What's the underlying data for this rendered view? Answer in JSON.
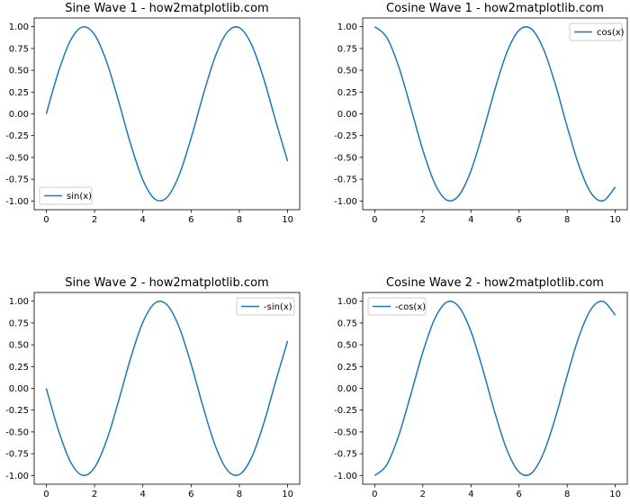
{
  "chart_data": [
    {
      "type": "line",
      "title": "Sine Wave 1 - how2matplotlib.com",
      "xlabel": "",
      "ylabel": "",
      "xlim": [
        -0.5,
        10.5
      ],
      "ylim": [
        -1.1,
        1.1
      ],
      "xticks": [
        0,
        2,
        4,
        6,
        8,
        10
      ],
      "xtick_labels": [
        "0",
        "2",
        "4",
        "6",
        "8",
        "10"
      ],
      "yticks": [
        -1,
        -0.75,
        -0.5,
        -0.25,
        0,
        0.25,
        0.5,
        0.75,
        1
      ],
      "ytick_labels": [
        "-1.00",
        "-0.75",
        "-0.50",
        "-0.25",
        "0.00",
        "0.25",
        "0.50",
        "0.75",
        "1.00"
      ],
      "grid": false,
      "legend_position": "lower-left",
      "series": [
        {
          "name": "sin(x)",
          "color": "#1f77b4",
          "x": [
            0,
            0.5,
            1,
            1.5,
            2,
            2.5,
            3,
            3.5,
            4,
            4.5,
            5,
            5.5,
            6,
            6.5,
            7,
            7.5,
            8,
            8.5,
            9,
            9.5,
            10
          ],
          "y": [
            0,
            0.479,
            0.841,
            0.997,
            0.909,
            0.598,
            0.141,
            -0.351,
            -0.757,
            -0.978,
            -0.959,
            -0.706,
            -0.279,
            0.215,
            0.657,
            0.938,
            0.989,
            0.798,
            0.412,
            -0.075,
            -0.544
          ]
        }
      ]
    },
    {
      "type": "line",
      "title": "Cosine Wave 1 - how2matplotlib.com",
      "xlabel": "",
      "ylabel": "",
      "xlim": [
        -0.5,
        10.5
      ],
      "ylim": [
        -1.1,
        1.1
      ],
      "xticks": [
        0,
        2,
        4,
        6,
        8,
        10
      ],
      "xtick_labels": [
        "0",
        "2",
        "4",
        "6",
        "8",
        "10"
      ],
      "yticks": [
        -1,
        -0.75,
        -0.5,
        -0.25,
        0,
        0.25,
        0.5,
        0.75,
        1
      ],
      "ytick_labels": [
        "-1.00",
        "-0.75",
        "-0.50",
        "-0.25",
        "0.00",
        "0.25",
        "0.50",
        "0.75",
        "1.00"
      ],
      "grid": false,
      "legend_position": "upper-right",
      "series": [
        {
          "name": "cos(x)",
          "color": "#1f77b4",
          "x": [
            0,
            0.5,
            1,
            1.5,
            2,
            2.5,
            3,
            3.5,
            4,
            4.5,
            5,
            5.5,
            6,
            6.5,
            7,
            7.5,
            8,
            8.5,
            9,
            9.5,
            10
          ],
          "y": [
            1,
            0.878,
            0.54,
            0.071,
            -0.416,
            -0.801,
            -0.99,
            -0.936,
            -0.654,
            -0.211,
            0.284,
            0.709,
            0.96,
            0.977,
            0.754,
            0.347,
            -0.146,
            -0.602,
            -0.911,
            -0.997,
            -0.839
          ]
        }
      ]
    },
    {
      "type": "line",
      "title": "Sine Wave 2 - how2matplotlib.com",
      "xlabel": "",
      "ylabel": "",
      "xlim": [
        -0.5,
        10.5
      ],
      "ylim": [
        -1.1,
        1.1
      ],
      "xticks": [
        0,
        2,
        4,
        6,
        8,
        10
      ],
      "xtick_labels": [
        "0",
        "2",
        "4",
        "6",
        "8",
        "10"
      ],
      "yticks": [
        -1,
        -0.75,
        -0.5,
        -0.25,
        0,
        0.25,
        0.5,
        0.75,
        1
      ],
      "ytick_labels": [
        "-1.00",
        "-0.75",
        "-0.50",
        "-0.25",
        "0.00",
        "0.25",
        "0.50",
        "0.75",
        "1.00"
      ],
      "grid": false,
      "legend_position": "upper-right",
      "series": [
        {
          "name": "-sin(x)",
          "color": "#1f77b4",
          "x": [
            0,
            0.5,
            1,
            1.5,
            2,
            2.5,
            3,
            3.5,
            4,
            4.5,
            5,
            5.5,
            6,
            6.5,
            7,
            7.5,
            8,
            8.5,
            9,
            9.5,
            10
          ],
          "y": [
            0,
            -0.479,
            -0.841,
            -0.997,
            -0.909,
            -0.598,
            -0.141,
            0.351,
            0.757,
            0.978,
            0.959,
            0.706,
            0.279,
            -0.215,
            -0.657,
            -0.938,
            -0.989,
            -0.798,
            -0.412,
            0.075,
            0.544
          ]
        }
      ]
    },
    {
      "type": "line",
      "title": "Cosine Wave 2 - how2matplotlib.com",
      "xlabel": "",
      "ylabel": "",
      "xlim": [
        -0.5,
        10.5
      ],
      "ylim": [
        -1.1,
        1.1
      ],
      "xticks": [
        0,
        2,
        4,
        6,
        8,
        10
      ],
      "xtick_labels": [
        "0",
        "2",
        "4",
        "6",
        "8",
        "10"
      ],
      "yticks": [
        -1,
        -0.75,
        -0.5,
        -0.25,
        0,
        0.25,
        0.5,
        0.75,
        1
      ],
      "ytick_labels": [
        "-1.00",
        "-0.75",
        "-0.50",
        "-0.25",
        "0.00",
        "0.25",
        "0.50",
        "0.75",
        "1.00"
      ],
      "grid": false,
      "legend_position": "upper-left",
      "series": [
        {
          "name": "-cos(x)",
          "color": "#1f77b4",
          "x": [
            0,
            0.5,
            1,
            1.5,
            2,
            2.5,
            3,
            3.5,
            4,
            4.5,
            5,
            5.5,
            6,
            6.5,
            7,
            7.5,
            8,
            8.5,
            9,
            9.5,
            10
          ],
          "y": [
            -1,
            -0.878,
            -0.54,
            -0.071,
            0.416,
            0.801,
            0.99,
            0.936,
            0.654,
            0.211,
            -0.284,
            -0.709,
            -0.96,
            -0.977,
            -0.754,
            -0.347,
            0.146,
            0.602,
            0.911,
            0.997,
            0.839
          ]
        }
      ]
    }
  ]
}
